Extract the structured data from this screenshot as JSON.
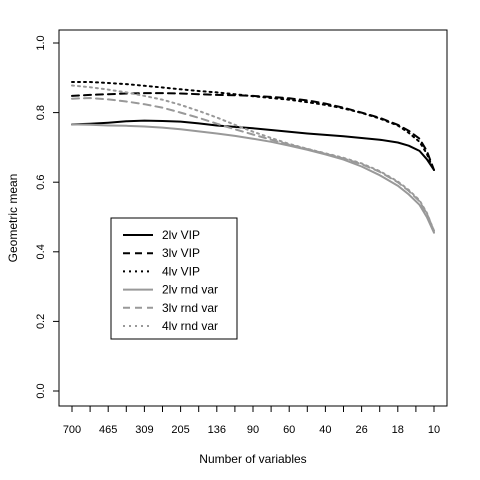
{
  "chart_data": {
    "type": "line",
    "title": "",
    "xlabel": "Number of variables",
    "ylabel": "Geometric mean",
    "ylim": [
      0,
      1
    ],
    "y_ticks": [
      "0.0",
      "0.2",
      "0.4",
      "0.6",
      "0.8",
      "1.0"
    ],
    "x_tick_labels": [
      "700",
      "465",
      "309",
      "205",
      "136",
      "90",
      "60",
      "40",
      "26",
      "18",
      "10"
    ],
    "x_minor_tick_count": 21,
    "grid": false,
    "legend_position": "center-left",
    "x_progress": [
      0,
      0.05,
      0.1,
      0.15,
      0.2,
      0.25,
      0.3,
      0.35,
      0.4,
      0.45,
      0.5,
      0.55,
      0.6,
      0.65,
      0.7,
      0.75,
      0.8,
      0.85,
      0.9,
      0.93,
      0.96,
      0.98,
      1.0
    ],
    "series": [
      {
        "name": "2lv VIP",
        "color": "#000000",
        "dash": "solid",
        "values": [
          0.766,
          0.768,
          0.771,
          0.775,
          0.777,
          0.776,
          0.774,
          0.769,
          0.763,
          0.759,
          0.755,
          0.75,
          0.745,
          0.74,
          0.736,
          0.732,
          0.727,
          0.722,
          0.714,
          0.705,
          0.69,
          0.666,
          0.635
        ]
      },
      {
        "name": "3lv VIP",
        "color": "#000000",
        "dash": "dashed",
        "values": [
          0.848,
          0.851,
          0.853,
          0.855,
          0.856,
          0.856,
          0.855,
          0.853,
          0.851,
          0.85,
          0.848,
          0.845,
          0.841,
          0.835,
          0.826,
          0.814,
          0.8,
          0.785,
          0.765,
          0.748,
          0.725,
          0.69,
          0.635
        ]
      },
      {
        "name": "4lv VIP",
        "color": "#000000",
        "dash": "dotted",
        "values": [
          0.888,
          0.888,
          0.885,
          0.882,
          0.877,
          0.872,
          0.867,
          0.862,
          0.858,
          0.853,
          0.847,
          0.842,
          0.837,
          0.83,
          0.822,
          0.812,
          0.799,
          0.783,
          0.763,
          0.742,
          0.716,
          0.682,
          0.632
        ]
      },
      {
        "name": "2lv rnd var",
        "color": "#999999",
        "dash": "solid",
        "values": [
          0.766,
          0.765,
          0.763,
          0.762,
          0.76,
          0.757,
          0.752,
          0.746,
          0.74,
          0.733,
          0.725,
          0.716,
          0.705,
          0.693,
          0.68,
          0.665,
          0.645,
          0.62,
          0.59,
          0.565,
          0.535,
          0.5,
          0.455
        ]
      },
      {
        "name": "3lv rnd var",
        "color": "#999999",
        "dash": "dashed",
        "values": [
          0.84,
          0.842,
          0.838,
          0.832,
          0.824,
          0.814,
          0.8,
          0.785,
          0.768,
          0.752,
          0.737,
          0.722,
          0.708,
          0.695,
          0.682,
          0.668,
          0.652,
          0.63,
          0.6,
          0.575,
          0.545,
          0.51,
          0.46
        ]
      },
      {
        "name": "4lv rnd var",
        "color": "#999999",
        "dash": "dotted",
        "values": [
          0.878,
          0.873,
          0.866,
          0.858,
          0.848,
          0.837,
          0.822,
          0.805,
          0.786,
          0.765,
          0.745,
          0.727,
          0.71,
          0.696,
          0.683,
          0.67,
          0.654,
          0.632,
          0.602,
          0.578,
          0.548,
          0.512,
          0.46
        ]
      }
    ]
  }
}
